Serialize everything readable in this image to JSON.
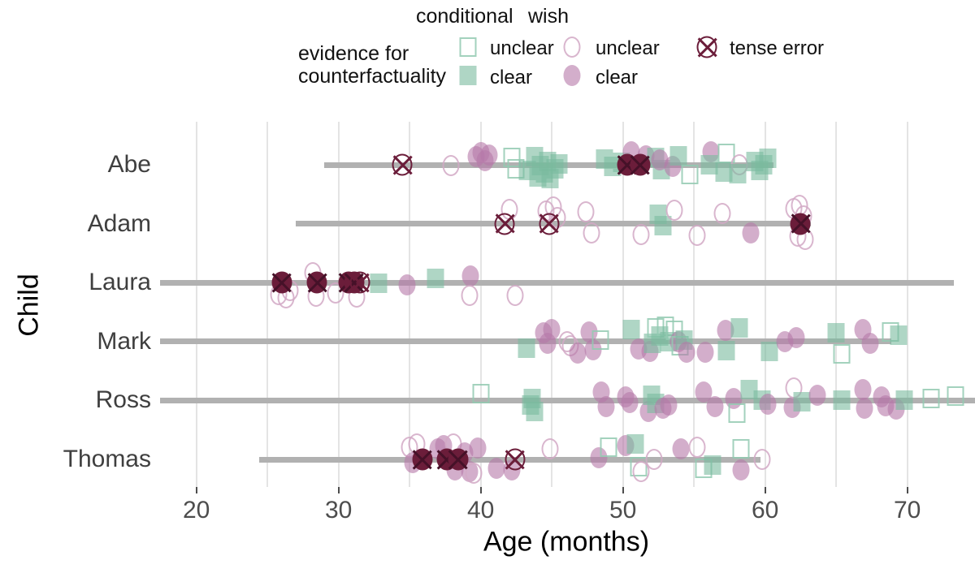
{
  "legend": {
    "conditional_title": "conditional",
    "wish_title": "wish",
    "evidence_line1": "evidence for",
    "evidence_line2": "counterfactuality",
    "conditional_unclear": "unclear",
    "conditional_clear": "clear",
    "wish_unclear": "unclear",
    "wish_clear": "clear",
    "tense_error": "tense error"
  },
  "colors": {
    "green": "#79bb9e",
    "green_border": "#93cab2",
    "pink": "#b678a8",
    "pink_border": "#d2a9c6",
    "maroon": "#6b1d3a",
    "range_line": "#b1b1b1",
    "gridline": "#e4e4e4",
    "tick_label": "#4d4d4d"
  },
  "chart_data": {
    "type": "scatter",
    "xlabel": "Age (months)",
    "ylabel": "Child",
    "xticks": [
      20,
      30,
      40,
      50,
      60,
      70
    ],
    "gridline_ages": [
      20,
      25,
      30,
      35,
      40,
      45,
      50,
      55,
      60,
      65,
      70
    ],
    "x_panel_range": [
      17.6,
      74.8
    ],
    "marker_types": {
      "cu": {
        "construction": "conditional",
        "evidence": "unclear",
        "symbol": "open green square"
      },
      "cc": {
        "construction": "conditional",
        "evidence": "clear",
        "symbol": "filled green square"
      },
      "wu": {
        "construction": "wish",
        "evidence": "unclear",
        "symbol": "open pink circle"
      },
      "wc": {
        "construction": "wish",
        "evidence": "clear",
        "symbol": "filled pink circle"
      },
      "te": {
        "construction": "tense error",
        "symbol": "open maroon circle with X"
      },
      "tef": {
        "construction": "tense error",
        "symbol": "filled maroon circle with X"
      }
    },
    "children": [
      "Abe",
      "Adam",
      "Laura",
      "Mark",
      "Ross",
      "Thomas"
    ],
    "rows": [
      {
        "child": "Abe",
        "line": [
          29.0,
          60.6
        ],
        "points": [
          [
            34.5,
            "te",
            0
          ],
          [
            37.9,
            "wu",
            1
          ],
          [
            39.7,
            "wc",
            -10
          ],
          [
            40.0,
            "wc",
            -15
          ],
          [
            40.3,
            "wc",
            -5
          ],
          [
            40.6,
            "wc",
            -12
          ],
          [
            42.2,
            "cu",
            -9
          ],
          [
            42.5,
            "cu",
            5
          ],
          [
            43.3,
            "cc",
            7
          ],
          [
            43.8,
            "cc",
            -10
          ],
          [
            44.0,
            "cc",
            15
          ],
          [
            44.2,
            "cc",
            1
          ],
          [
            44.5,
            "cc",
            10
          ],
          [
            44.7,
            "cc",
            -4
          ],
          [
            44.9,
            "cc",
            17
          ],
          [
            45.2,
            "cc",
            5
          ],
          [
            45.5,
            "cc",
            -1
          ],
          [
            48.7,
            "cc",
            -7
          ],
          [
            49.3,
            "cc",
            2
          ],
          [
            49.9,
            "cc",
            -3
          ],
          [
            50.6,
            "wc",
            -16
          ],
          [
            51.6,
            "wc",
            -11
          ],
          [
            50.3,
            "tef",
            0
          ],
          [
            51.2,
            "tef",
            0
          ],
          [
            52.3,
            "cc",
            -9
          ],
          [
            52.7,
            "cc",
            6
          ],
          [
            52.6,
            "wc",
            -6
          ],
          [
            53.5,
            "wc",
            2
          ],
          [
            53.9,
            "cc",
            -11
          ],
          [
            54.7,
            "cu",
            12
          ],
          [
            56.2,
            "wc",
            -16
          ],
          [
            56.1,
            "cc",
            0
          ],
          [
            57.3,
            "cu",
            -14
          ],
          [
            57.1,
            "cc",
            9
          ],
          [
            58.2,
            "wu",
            0
          ],
          [
            58.1,
            "cc",
            11
          ],
          [
            59.3,
            "cc",
            -4
          ],
          [
            59.6,
            "cc",
            7
          ],
          [
            59.9,
            "cc",
            0
          ],
          [
            60.2,
            "cc",
            -8
          ]
        ]
      },
      {
        "child": "Adam",
        "line": [
          27.0,
          63.2
        ],
        "points": [
          [
            41.7,
            "te",
            0
          ],
          [
            42.0,
            "wu",
            -18
          ],
          [
            44.8,
            "te",
            0
          ],
          [
            44.6,
            "wu",
            -16
          ],
          [
            45.1,
            "wu",
            -21
          ],
          [
            45.4,
            "wu",
            -8
          ],
          [
            47.4,
            "wu",
            -15
          ],
          [
            47.8,
            "wu",
            11
          ],
          [
            51.3,
            "wu",
            13
          ],
          [
            52.5,
            "cc",
            -12
          ],
          [
            52.8,
            "cc",
            2
          ],
          [
            53.6,
            "wu",
            -17
          ],
          [
            55.2,
            "wu",
            14
          ],
          [
            57.0,
            "wu",
            -13
          ],
          [
            59.0,
            "wc",
            11
          ],
          [
            62.0,
            "wu",
            -19
          ],
          [
            62.4,
            "wu",
            -23
          ],
          [
            62.7,
            "wu",
            -10
          ],
          [
            62.3,
            "wu",
            15
          ],
          [
            62.8,
            "wu",
            19
          ],
          [
            62.5,
            "tef",
            0
          ]
        ]
      },
      {
        "child": "Laura",
        "line": [
          null,
          73.3
        ],
        "points": [
          [
            25.8,
            "wu",
            15
          ],
          [
            26.3,
            "wu",
            19
          ],
          [
            26.6,
            "wu",
            10
          ],
          [
            26.0,
            "tef",
            0
          ],
          [
            28.2,
            "wu",
            -12
          ],
          [
            28.4,
            "wu",
            17
          ],
          [
            29.8,
            "wu",
            13
          ],
          [
            28.5,
            "tef",
            0
          ],
          [
            30.7,
            "tef",
            0
          ],
          [
            31.1,
            "tef",
            0
          ],
          [
            31.5,
            "te",
            0
          ],
          [
            31.3,
            "wu",
            18
          ],
          [
            32.8,
            "cc",
            1
          ],
          [
            34.8,
            "wc",
            3
          ],
          [
            36.8,
            "cc",
            -5
          ],
          [
            39.3,
            "wc",
            -8
          ],
          [
            39.2,
            "wu",
            16
          ],
          [
            42.4,
            "wu",
            16
          ]
        ]
      },
      {
        "child": "Mark",
        "line": [
          null,
          68.9
        ],
        "points": [
          [
            43.2,
            "cc",
            8
          ],
          [
            44.4,
            "wc",
            -11
          ],
          [
            44.7,
            "wc",
            2
          ],
          [
            45.0,
            "wc",
            -15
          ],
          [
            46.1,
            "wu",
            0
          ],
          [
            46.3,
            "wu",
            5
          ],
          [
            46.8,
            "wc",
            14
          ],
          [
            47.6,
            "wc",
            -12
          ],
          [
            47.9,
            "wc",
            10
          ],
          [
            48.4,
            "cu",
            -2
          ],
          [
            50.6,
            "cc",
            -15
          ],
          [
            51.1,
            "wc",
            9
          ],
          [
            51.9,
            "wc",
            12
          ],
          [
            52.1,
            "cc",
            2
          ],
          [
            52.3,
            "cu",
            -17
          ],
          [
            52.6,
            "cc",
            -7
          ],
          [
            53.0,
            "cu",
            -19
          ],
          [
            53.2,
            "cc",
            0
          ],
          [
            53.6,
            "cu",
            -14
          ],
          [
            53.9,
            "wc",
            0
          ],
          [
            54.0,
            "cu",
            5
          ],
          [
            54.3,
            "cc",
            -2
          ],
          [
            54.5,
            "wc",
            13
          ],
          [
            55.8,
            "wc",
            13
          ],
          [
            57.2,
            "wc",
            -14
          ],
          [
            57.3,
            "cc",
            11
          ],
          [
            58.2,
            "cc",
            -17
          ],
          [
            60.3,
            "cc",
            12
          ],
          [
            61.4,
            "wc",
            0
          ],
          [
            62.2,
            "wc",
            -5
          ],
          [
            65.0,
            "cc",
            -11
          ],
          [
            65.4,
            "cu",
            15
          ],
          [
            66.9,
            "wc",
            -15
          ],
          [
            67.4,
            "wc",
            2
          ],
          [
            68.8,
            "cu",
            -12
          ],
          [
            69.4,
            "cc",
            -8
          ]
        ]
      },
      {
        "child": "Ross",
        "line": [
          null,
          null
        ],
        "points": [
          [
            40.0,
            "cu",
            -8
          ],
          [
            43.5,
            "cc",
            6
          ],
          [
            43.8,
            "cc",
            14
          ],
          [
            43.6,
            "cc",
            -2
          ],
          [
            48.5,
            "wc",
            -10
          ],
          [
            48.8,
            "wc",
            8
          ],
          [
            50.2,
            "wc",
            -4
          ],
          [
            50.5,
            "wc",
            3
          ],
          [
            51.8,
            "wc",
            14
          ],
          [
            52.0,
            "cc",
            -6
          ],
          [
            52.3,
            "cc",
            4
          ],
          [
            52.8,
            "wc",
            10
          ],
          [
            53.2,
            "wc",
            6
          ],
          [
            55.7,
            "wc",
            -10
          ],
          [
            56.5,
            "wc",
            8
          ],
          [
            57.8,
            "wc",
            -2
          ],
          [
            58.0,
            "cu",
            16
          ],
          [
            58.9,
            "cc",
            -13
          ],
          [
            59.8,
            "cc",
            0
          ],
          [
            60.2,
            "wc",
            5
          ],
          [
            61.9,
            "wc",
            9
          ],
          [
            62.0,
            "wu",
            -15
          ],
          [
            62.6,
            "cc",
            2
          ],
          [
            63.7,
            "wc",
            -6
          ],
          [
            65.4,
            "cc",
            0
          ],
          [
            66.9,
            "wc",
            -13
          ],
          [
            67.0,
            "wc",
            10
          ],
          [
            68.2,
            "wc",
            -4
          ],
          [
            68.5,
            "wc",
            7
          ],
          [
            69.2,
            "wc",
            11
          ],
          [
            69.8,
            "cc",
            0
          ],
          [
            71.7,
            "cu",
            -2
          ],
          [
            73.4,
            "cu",
            -5
          ]
        ]
      },
      {
        "child": "Thomas",
        "line": [
          24.4,
          59.7
        ],
        "points": [
          [
            35.0,
            "wu",
            -15
          ],
          [
            35.5,
            "wu",
            -19
          ],
          [
            35.2,
            "wc",
            4
          ],
          [
            35.9,
            "tef",
            0
          ],
          [
            37.0,
            "wc",
            -13
          ],
          [
            37.4,
            "wc",
            -17
          ],
          [
            37.6,
            "tef",
            0
          ],
          [
            38.4,
            "tef",
            0
          ],
          [
            38.1,
            "wu",
            -19
          ],
          [
            38.2,
            "wc",
            13
          ],
          [
            38.9,
            "wc",
            -8
          ],
          [
            39.2,
            "wc",
            15
          ],
          [
            39.5,
            "wu",
            17
          ],
          [
            39.8,
            "wc",
            -14
          ],
          [
            41.1,
            "wc",
            11
          ],
          [
            42.2,
            "wc",
            13
          ],
          [
            42.4,
            "te",
            0
          ],
          [
            44.9,
            "wu",
            -13
          ],
          [
            48.3,
            "wc",
            -2
          ],
          [
            49.0,
            "cu",
            -15
          ],
          [
            50.2,
            "wc",
            -17
          ],
          [
            50.9,
            "cc",
            -19
          ],
          [
            51.1,
            "cu",
            9
          ],
          [
            51.3,
            "wu",
            15
          ],
          [
            52.2,
            "wu",
            0
          ],
          [
            54.1,
            "wc",
            -13
          ],
          [
            55.2,
            "wu",
            -15
          ],
          [
            55.7,
            "cu",
            11
          ],
          [
            56.3,
            "cc",
            7
          ],
          [
            58.3,
            "cu",
            -13
          ],
          [
            58.3,
            "wc",
            13
          ],
          [
            59.8,
            "wu",
            0
          ]
        ]
      }
    ]
  }
}
